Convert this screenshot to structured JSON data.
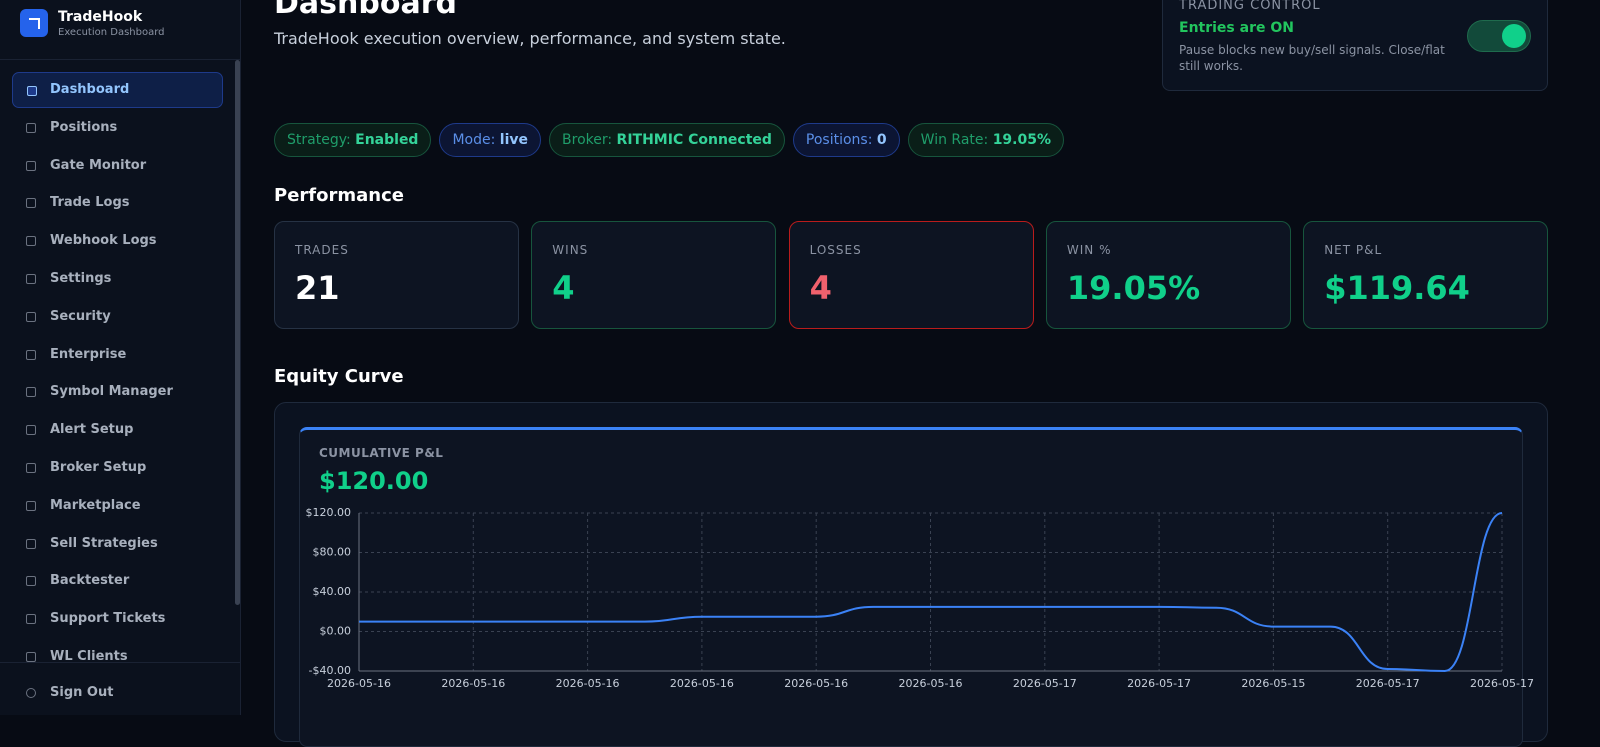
{
  "sidebar": {
    "brand": "TradeHook",
    "brand_sub": "Execution Dashboard",
    "nav": [
      "Dashboard",
      "Positions",
      "Gate Monitor",
      "Trade Logs",
      "Webhook Logs",
      "Settings",
      "Security",
      "Enterprise",
      "Symbol Manager",
      "Alert Setup",
      "Broker Setup",
      "Marketplace",
      "Sell Strategies",
      "Backtester",
      "Support Tickets",
      "WL Clients"
    ],
    "active_index": 0,
    "sign_out": "Sign Out"
  },
  "header": {
    "title": "Dashboard",
    "subtitle": "TradeHook execution overview, performance, and system state."
  },
  "trading_control": {
    "label": "TRADING CONTROL",
    "status": "Entries are ON",
    "note": "Pause blocks new buy/sell signals. Close/flat still works.",
    "entries_on": true
  },
  "pills": [
    {
      "label": "Strategy:",
      "value": "Enabled",
      "tone": "green"
    },
    {
      "label": "Mode:",
      "value": "live",
      "tone": "blue"
    },
    {
      "label": "Broker:",
      "value": "RITHMIC Connected",
      "tone": "green"
    },
    {
      "label": "Positions:",
      "value": "0",
      "tone": "blue"
    },
    {
      "label": "Win Rate:",
      "value": "19.05%",
      "tone": "green"
    }
  ],
  "performance": {
    "heading": "Performance",
    "cards": [
      {
        "label": "TRADES",
        "value": "21",
        "tone": "white"
      },
      {
        "label": "WINS",
        "value": "4",
        "tone": "green"
      },
      {
        "label": "LOSSES",
        "value": "4",
        "tone": "red"
      },
      {
        "label": "WIN %",
        "value": "19.05%",
        "tone": "green"
      },
      {
        "label": "NET P&L",
        "value": "$119.64",
        "tone": "green"
      }
    ]
  },
  "equity": {
    "heading": "Equity Curve",
    "label": "CUMULATIVE P&L",
    "value": "$120.00"
  },
  "chart_data": {
    "type": "line",
    "categories": [
      "2026-05-16",
      null,
      "2026-05-16",
      null,
      "2026-05-16",
      null,
      "2026-05-16",
      null,
      "2026-05-16",
      null,
      "2026-05-16",
      null,
      "2026-05-17",
      null,
      "2026-05-17",
      null,
      "2026-05-15",
      null,
      "2026-05-17",
      null,
      "2026-05-17"
    ],
    "series": [
      {
        "color": "#3b82f6",
        "values": [
          10,
          10,
          10,
          10,
          10,
          10,
          15,
          15,
          15,
          25,
          25,
          25,
          25,
          25,
          25,
          24,
          5,
          5,
          -38,
          -40,
          120
        ]
      }
    ],
    "ylim": [
      -40,
      120
    ],
    "yticks": [
      {
        "value": -40,
        "label": "-$40.00"
      },
      {
        "value": 0,
        "label": "$0.00"
      },
      {
        "value": 40,
        "label": "$40.00"
      },
      {
        "value": 80,
        "label": "$80.00"
      },
      {
        "value": 120,
        "label": "$120.00"
      }
    ],
    "grid": true
  }
}
